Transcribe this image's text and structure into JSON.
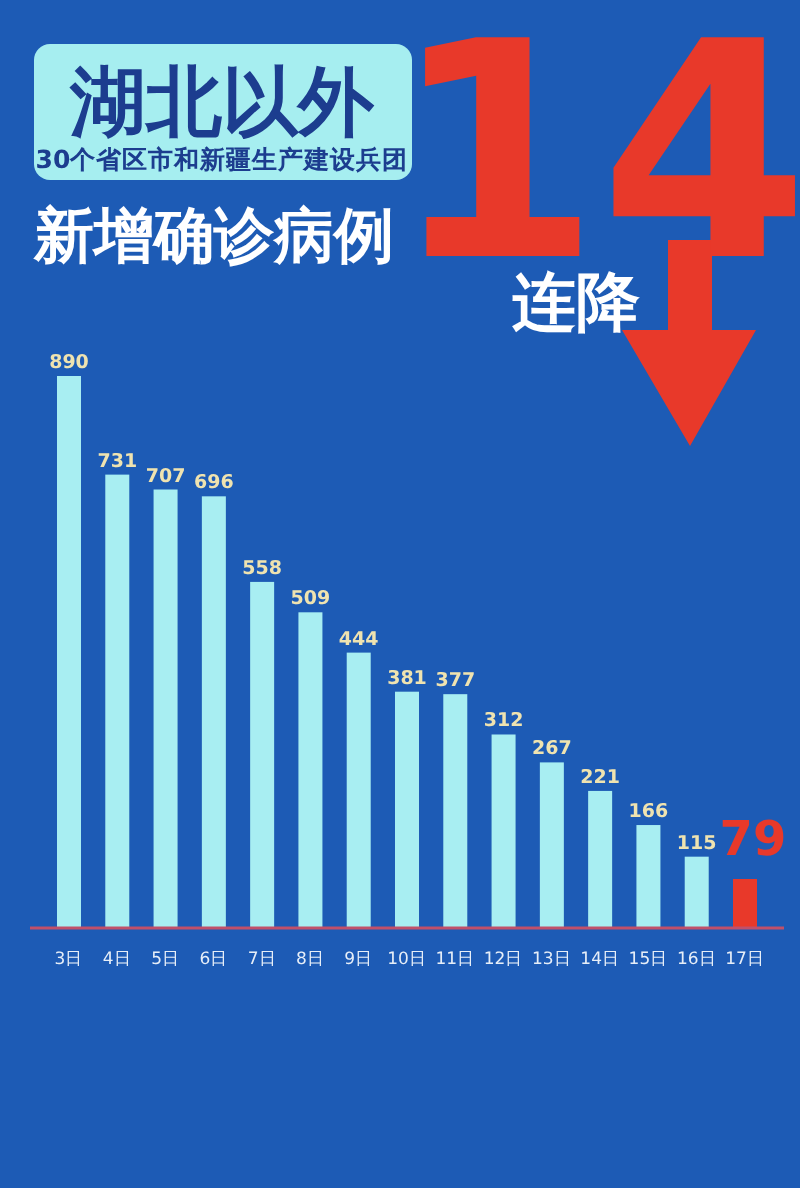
{
  "chart_data": {
    "type": "bar",
    "title": "湖北以外",
    "subtitle": "30个省区市和新疆生产建设兵团",
    "annotations": [
      "新增确诊病例",
      "14",
      "连降"
    ],
    "categories": [
      "3日",
      "4日",
      "5日",
      "6日",
      "7日",
      "8日",
      "9日",
      "10日",
      "11日",
      "12日",
      "13日",
      "14日",
      "15日",
      "16日",
      "17日"
    ],
    "values": [
      890,
      731,
      707,
      696,
      558,
      509,
      444,
      381,
      377,
      312,
      267,
      221,
      166,
      115,
      79
    ],
    "colors": [
      "#a8eef2",
      "#a8eef2",
      "#a8eef2",
      "#a8eef2",
      "#a8eef2",
      "#a8eef2",
      "#a8eef2",
      "#a8eef2",
      "#a8eef2",
      "#a8eef2",
      "#a8eef2",
      "#a8eef2",
      "#a8eef2",
      "#a8eef2",
      "#e8392a"
    ],
    "data_labels": true
  }
}
